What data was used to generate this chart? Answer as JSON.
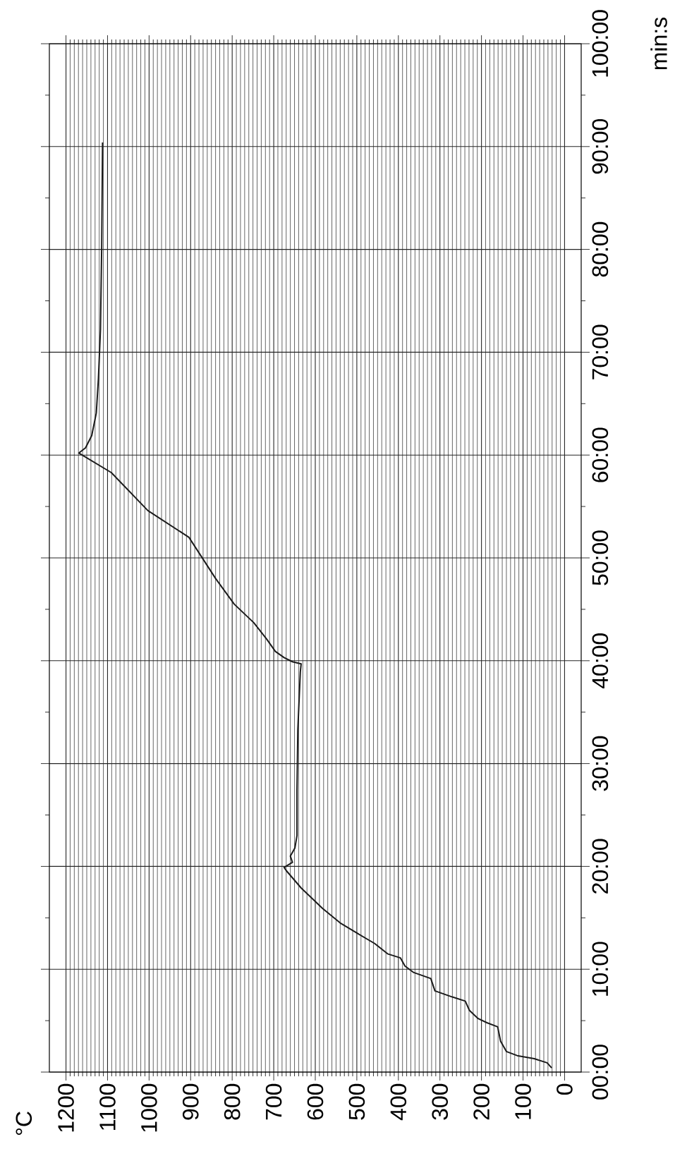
{
  "chart_data": {
    "type": "line",
    "annotations": [
      "°C"
    ],
    "ylabel": "min:s",
    "color": "#1a1a1a",
    "grid": true,
    "xlim": [
      1240,
      -40
    ],
    "ylim": [
      0,
      100
    ],
    "xticks": [
      1200,
      1100,
      1000,
      900,
      800,
      700,
      600,
      500,
      400,
      300,
      200,
      100,
      0
    ],
    "yticks": [
      {
        "value": 0,
        "label": "00:00"
      },
      {
        "value": 10,
        "label": "10:00"
      },
      {
        "value": 20,
        "label": "20:00"
      },
      {
        "value": 30,
        "label": "30:00"
      },
      {
        "value": 40,
        "label": "40:00"
      },
      {
        "value": 50,
        "label": "50:00"
      },
      {
        "value": 60,
        "label": "60:00"
      },
      {
        "value": 70,
        "label": "70:00"
      },
      {
        "value": 80,
        "label": "80:00"
      },
      {
        "value": 90,
        "label": "90:00"
      },
      {
        "value": 100,
        "label": "100:00"
      }
    ],
    "x": [
      31,
      42,
      73,
      114,
      140,
      154,
      161,
      187,
      208,
      229,
      239,
      270,
      312,
      322,
      364,
      384,
      395,
      426,
      457,
      499,
      540,
      582,
      634,
      670,
      675,
      655,
      660,
      649,
      644,
      644,
      642,
      636,
      634,
      655,
      675,
      696,
      717,
      748,
      795,
      840,
      904,
      1003,
      1091,
      1169,
      1153,
      1138,
      1127,
      1122,
      1117,
      1114,
      1112
    ],
    "values": [
      0.4,
      0.9,
      1.3,
      1.6,
      2.0,
      3.0,
      4.4,
      4.8,
      5.2,
      6.0,
      6.9,
      7.3,
      7.9,
      9.1,
      9.7,
      10.3,
      11.1,
      11.5,
      12.5,
      13.5,
      14.5,
      15.9,
      17.9,
      19.6,
      19.9,
      20.4,
      21.0,
      21.8,
      23.0,
      27.4,
      33.3,
      38.9,
      39.7,
      39.9,
      40.3,
      40.9,
      42.1,
      43.7,
      45.5,
      48.0,
      52.0,
      54.6,
      58.3,
      60.2,
      60.7,
      61.9,
      64.1,
      67.4,
      72.2,
      80.4,
      90.4
    ]
  }
}
